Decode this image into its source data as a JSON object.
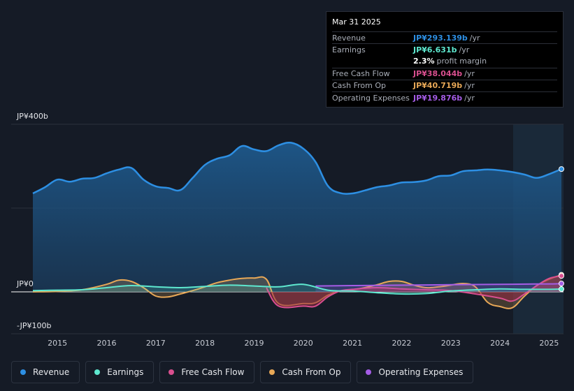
{
  "tooltip": {
    "date": "Mar 31 2025",
    "rows": [
      {
        "label": "Revenue",
        "value": "JP¥293.139b",
        "unit": "/yr",
        "color": "#2d8fe3"
      },
      {
        "label": "Earnings",
        "value": "JP¥6.631b",
        "unit": "/yr",
        "color": "#5ee8cf"
      },
      {
        "label": "",
        "value": "2.3%",
        "unit": "profit margin",
        "color": "#ffffff"
      },
      {
        "label": "Free Cash Flow",
        "value": "JP¥38.044b",
        "unit": "/yr",
        "color": "#d94f8f"
      },
      {
        "label": "Cash From Op",
        "value": "JP¥40.719b",
        "unit": "/yr",
        "color": "#e8a857"
      },
      {
        "label": "Operating Expenses",
        "value": "JP¥19.876b",
        "unit": "/yr",
        "color": "#a45ce6"
      }
    ]
  },
  "legend": [
    {
      "label": "Revenue",
      "color": "#2d8fe3"
    },
    {
      "label": "Earnings",
      "color": "#5ee8cf"
    },
    {
      "label": "Free Cash Flow",
      "color": "#d94f8f"
    },
    {
      "label": "Cash From Op",
      "color": "#e8a857"
    },
    {
      "label": "Operating Expenses",
      "color": "#a45ce6"
    }
  ],
  "chart_data": {
    "type": "area",
    "title": "",
    "xlabel": "",
    "ylabel": "",
    "ylim": [
      -100,
      400
    ],
    "y_ticks": [
      {
        "value": 400,
        "label": "JP¥400b"
      },
      {
        "value": 0,
        "label": "JP¥0"
      },
      {
        "value": -100,
        "label": "-JP¥100b"
      }
    ],
    "x_ticks": [
      "2015",
      "2016",
      "2017",
      "2018",
      "2019",
      "2020",
      "2021",
      "2022",
      "2023",
      "2024",
      "2025"
    ],
    "x_range": [
      2014.5,
      2025.25
    ],
    "forecast_start": 2024.25,
    "series": [
      {
        "name": "Revenue",
        "color": "#2d8fe3",
        "x": [
          2014.5,
          2014.75,
          2015.0,
          2015.25,
          2015.5,
          2015.75,
          2016.0,
          2016.25,
          2016.5,
          2016.75,
          2017.0,
          2017.25,
          2017.5,
          2017.75,
          2018.0,
          2018.25,
          2018.5,
          2018.75,
          2019.0,
          2019.25,
          2019.5,
          2019.75,
          2020.0,
          2020.25,
          2020.5,
          2020.75,
          2021.0,
          2021.25,
          2021.5,
          2021.75,
          2022.0,
          2022.25,
          2022.5,
          2022.75,
          2023.0,
          2023.25,
          2023.5,
          2023.75,
          2024.0,
          2024.25,
          2024.5,
          2024.75,
          2025.0,
          2025.25
        ],
        "values": [
          235,
          250,
          268,
          263,
          270,
          272,
          283,
          292,
          296,
          268,
          252,
          248,
          243,
          272,
          303,
          318,
          326,
          348,
          340,
          336,
          350,
          356,
          342,
          310,
          253,
          236,
          235,
          242,
          250,
          254,
          261,
          262,
          266,
          276,
          278,
          288,
          290,
          292,
          290,
          286,
          280,
          272,
          281,
          293.139
        ]
      },
      {
        "name": "Earnings",
        "color": "#5ee8cf",
        "x": [
          2014.5,
          2015.0,
          2015.5,
          2016.0,
          2016.5,
          2017.0,
          2017.5,
          2018.0,
          2018.5,
          2019.0,
          2019.5,
          2020.0,
          2020.5,
          2021.0,
          2021.5,
          2022.0,
          2022.5,
          2023.0,
          2023.5,
          2024.0,
          2024.5,
          2025.0,
          2025.25
        ],
        "values": [
          3,
          4,
          5,
          10,
          15,
          12,
          10,
          13,
          16,
          14,
          12,
          18,
          4,
          2,
          -2,
          -5,
          -4,
          2,
          5,
          7,
          6,
          6,
          6.631
        ]
      },
      {
        "name": "Free Cash Flow",
        "color": "#d94f8f",
        "x": [
          2019.25,
          2019.5,
          2020.0,
          2020.25,
          2020.5,
          2020.75,
          2021.0,
          2021.5,
          2022.0,
          2022.5,
          2023.0,
          2023.5,
          2024.0,
          2024.25,
          2024.5,
          2024.75,
          2025.0,
          2025.25
        ],
        "values": [
          10,
          -34,
          -34,
          -34,
          -12,
          2,
          6,
          10,
          7,
          5,
          3,
          -5,
          -15,
          -22,
          -5,
          15,
          32,
          38.044
        ]
      },
      {
        "name": "Cash From Op",
        "color": "#e8a857",
        "x": [
          2014.5,
          2015.0,
          2015.5,
          2016.0,
          2016.25,
          2016.5,
          2016.75,
          2017.0,
          2017.25,
          2017.5,
          2017.75,
          2018.0,
          2018.25,
          2018.5,
          2018.75,
          2019.0,
          2019.25,
          2019.5,
          2020.0,
          2020.25,
          2020.5,
          2020.75,
          2021.0,
          2021.25,
          2021.5,
          2021.75,
          2022.0,
          2022.25,
          2022.5,
          2022.75,
          2023.0,
          2023.25,
          2023.5,
          2023.75,
          2024.0,
          2024.25,
          2024.5,
          2024.75,
          2025.0,
          2025.25
        ],
        "values": [
          0,
          1,
          5,
          18,
          28,
          25,
          10,
          -10,
          -12,
          -5,
          3,
          12,
          22,
          28,
          32,
          33,
          30,
          -28,
          -28,
          -26,
          -8,
          2,
          5,
          10,
          17,
          25,
          25,
          16,
          10,
          12,
          16,
          20,
          12,
          -25,
          -35,
          -38,
          -10,
          15,
          30,
          40.719
        ]
      },
      {
        "name": "Operating Expenses",
        "color": "#a45ce6",
        "x": [
          2020.25,
          2021.0,
          2022.0,
          2023.0,
          2024.0,
          2025.0,
          2025.25
        ],
        "values": [
          14,
          15,
          16,
          17,
          18,
          19,
          19.876
        ]
      }
    ]
  }
}
